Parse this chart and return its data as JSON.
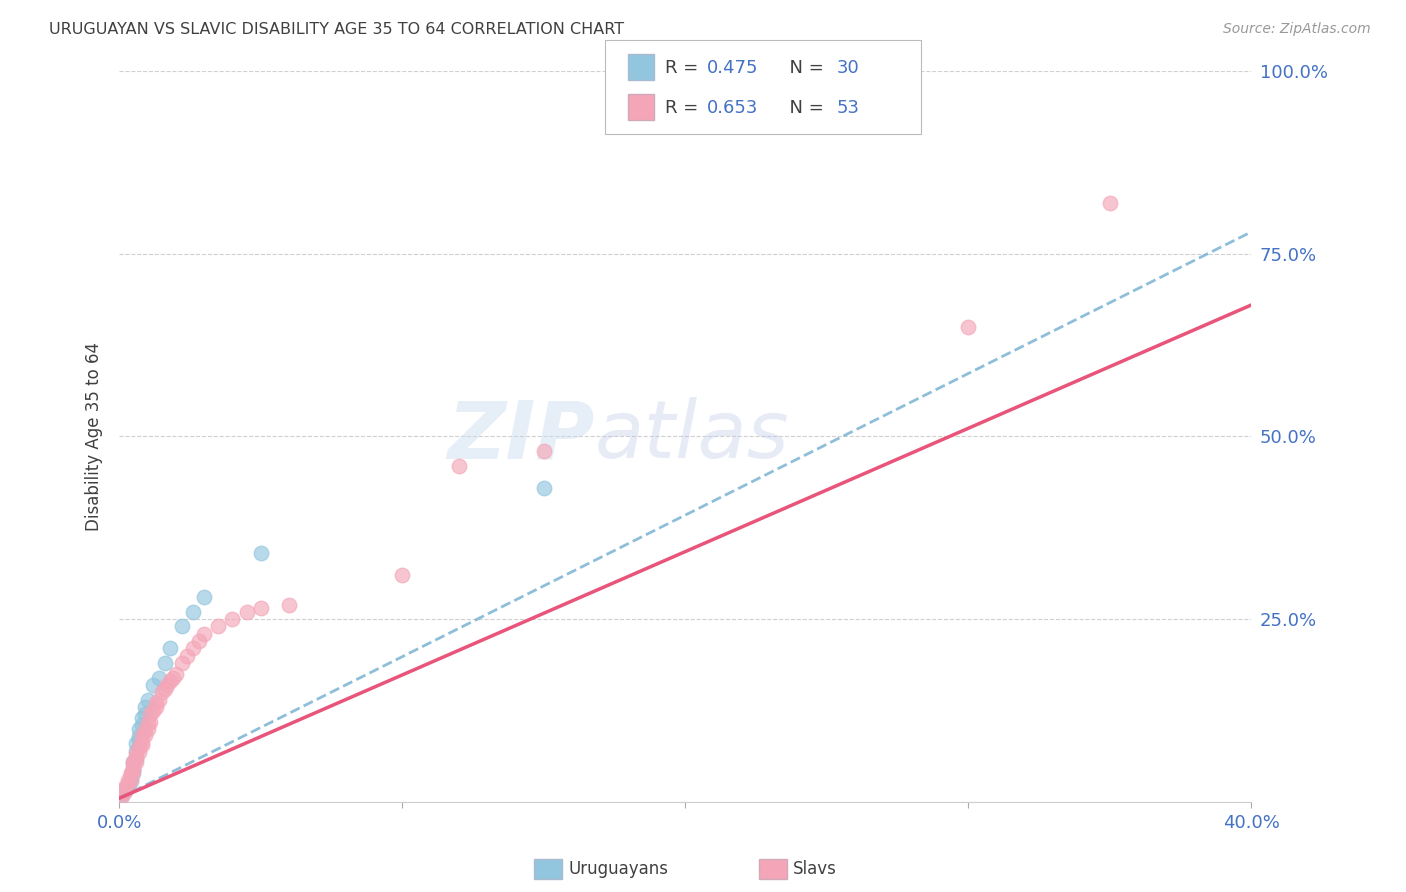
{
  "title": "URUGUAYAN VS SLAVIC DISABILITY AGE 35 TO 64 CORRELATION CHART",
  "source": "Source: ZipAtlas.com",
  "ylabel": "Disability Age 35 to 64",
  "xlim": [
    0.0,
    0.4
  ],
  "ylim": [
    0.0,
    1.0
  ],
  "xticks": [
    0.0,
    0.1,
    0.2,
    0.3,
    0.4
  ],
  "yticks": [
    0.0,
    0.25,
    0.5,
    0.75,
    1.0
  ],
  "ytick_labels": [
    "",
    "25.0%",
    "50.0%",
    "75.0%",
    "100.0%"
  ],
  "xtick_labels": [
    "0.0%",
    "",
    "",
    "",
    "40.0%"
  ],
  "blue_color": "#92c5de",
  "pink_color": "#f4a6b8",
  "blue_line_color": "#7ab3d4",
  "pink_line_color": "#e8547a",
  "axis_color": "#4472c4",
  "text_color": "#404040",
  "grid_color": "#d0d0d0",
  "background_color": "#ffffff",
  "uruguayan_x": [
    0.001,
    0.002,
    0.002,
    0.003,
    0.003,
    0.004,
    0.004,
    0.005,
    0.005,
    0.005,
    0.006,
    0.006,
    0.006,
    0.007,
    0.007,
    0.007,
    0.008,
    0.008,
    0.009,
    0.009,
    0.01,
    0.012,
    0.014,
    0.016,
    0.018,
    0.022,
    0.026,
    0.03,
    0.05,
    0.15
  ],
  "uruguayan_y": [
    0.01,
    0.015,
    0.018,
    0.02,
    0.025,
    0.028,
    0.035,
    0.04,
    0.045,
    0.055,
    0.06,
    0.07,
    0.08,
    0.085,
    0.09,
    0.1,
    0.105,
    0.115,
    0.12,
    0.13,
    0.14,
    0.16,
    0.17,
    0.19,
    0.21,
    0.24,
    0.26,
    0.28,
    0.34,
    0.43
  ],
  "slav_x": [
    0.001,
    0.001,
    0.002,
    0.002,
    0.003,
    0.003,
    0.003,
    0.004,
    0.004,
    0.004,
    0.005,
    0.005,
    0.005,
    0.005,
    0.006,
    0.006,
    0.006,
    0.007,
    0.007,
    0.008,
    0.008,
    0.008,
    0.009,
    0.009,
    0.01,
    0.01,
    0.011,
    0.011,
    0.012,
    0.013,
    0.013,
    0.014,
    0.015,
    0.016,
    0.017,
    0.018,
    0.019,
    0.02,
    0.022,
    0.024,
    0.026,
    0.028,
    0.03,
    0.035,
    0.04,
    0.045,
    0.05,
    0.06,
    0.1,
    0.12,
    0.15,
    0.3,
    0.35
  ],
  "slav_y": [
    0.008,
    0.012,
    0.015,
    0.02,
    0.022,
    0.025,
    0.03,
    0.032,
    0.038,
    0.04,
    0.042,
    0.045,
    0.05,
    0.055,
    0.055,
    0.06,
    0.065,
    0.068,
    0.075,
    0.078,
    0.082,
    0.09,
    0.092,
    0.098,
    0.1,
    0.108,
    0.11,
    0.12,
    0.125,
    0.13,
    0.135,
    0.14,
    0.15,
    0.155,
    0.16,
    0.165,
    0.17,
    0.175,
    0.19,
    0.2,
    0.21,
    0.22,
    0.23,
    0.24,
    0.25,
    0.26,
    0.265,
    0.27,
    0.31,
    0.46,
    0.48,
    0.65,
    0.82
  ],
  "uru_line_x": [
    0.0,
    0.4
  ],
  "uru_line_y": [
    0.005,
    0.78
  ],
  "slav_line_x": [
    0.0,
    0.4
  ],
  "slav_line_y": [
    0.005,
    0.68
  ]
}
